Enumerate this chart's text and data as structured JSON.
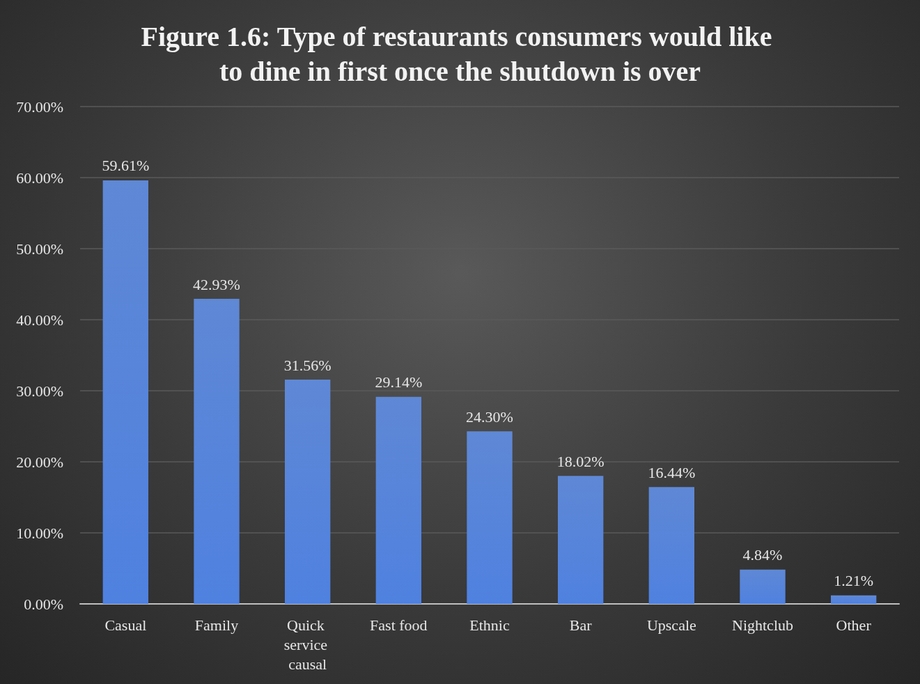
{
  "chart_data": {
    "type": "bar",
    "title": "Figure 1.6: Type of restaurants consumers would like to dine in first once the shutdown is over",
    "categories": [
      "Casual",
      "Family",
      "Quick service causal",
      "Fast food",
      "Ethnic",
      "Bar",
      "Upscale",
      "Nightclub",
      "Other"
    ],
    "values": [
      59.61,
      42.93,
      31.56,
      29.14,
      24.3,
      18.02,
      16.44,
      4.84,
      1.21
    ],
    "value_labels": [
      "59.61%",
      "42.93%",
      "31.56%",
      "29.14%",
      "24.30%",
      "18.02%",
      "16.44%",
      "4.84%",
      "1.21%"
    ],
    "color": "#4a78d0",
    "ylim": [
      0,
      70
    ],
    "yticks": [
      {
        "value": 0,
        "label": "0.00%"
      },
      {
        "value": 10,
        "label": "10.00%"
      },
      {
        "value": 20,
        "label": "20.00%"
      },
      {
        "value": 30,
        "label": "30.00%"
      },
      {
        "value": 40,
        "label": "40.00%"
      },
      {
        "value": 50,
        "label": "50.00%"
      },
      {
        "value": 60,
        "label": "60.00%"
      },
      {
        "value": 70,
        "label": "70.00%"
      }
    ],
    "grid": "y"
  }
}
